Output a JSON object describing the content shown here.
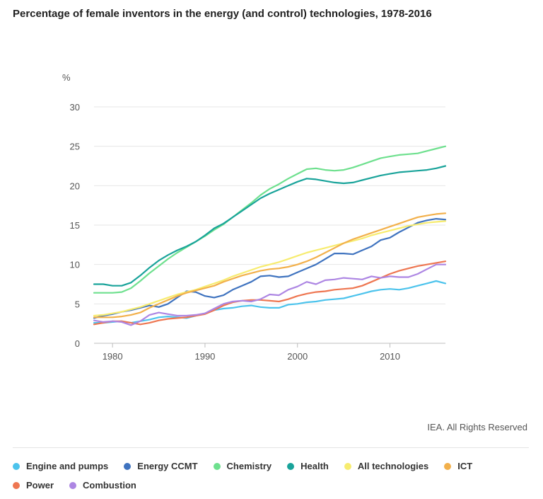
{
  "chart_data": {
    "type": "line",
    "title": "Percentage of female inventors in the energy (and control) technologies, 1978-2016",
    "ylabel": "%",
    "xlabel": "",
    "xlim": [
      1978,
      2016
    ],
    "ylim": [
      0,
      30
    ],
    "yticks": [
      0,
      5,
      10,
      15,
      20,
      25,
      30
    ],
    "xticks": [
      1980,
      1990,
      2000,
      2010
    ],
    "x": [
      1978,
      1979,
      1980,
      1981,
      1982,
      1983,
      1984,
      1985,
      1986,
      1987,
      1988,
      1989,
      1990,
      1991,
      1992,
      1993,
      1994,
      1995,
      1996,
      1997,
      1998,
      1999,
      2000,
      2001,
      2002,
      2003,
      2004,
      2005,
      2006,
      2007,
      2008,
      2009,
      2010,
      2011,
      2012,
      2013,
      2014,
      2015,
      2016
    ],
    "series": [
      {
        "name": "Engine and pumps",
        "color": "#4cc3ec",
        "values": [
          2.6,
          2.6,
          2.7,
          2.8,
          2.6,
          2.8,
          3.0,
          3.3,
          3.4,
          3.3,
          3.2,
          3.5,
          3.8,
          4.2,
          4.4,
          4.5,
          4.7,
          4.8,
          4.6,
          4.5,
          4.5,
          4.9,
          5.0,
          5.2,
          5.3,
          5.5,
          5.6,
          5.7,
          6.0,
          6.3,
          6.6,
          6.8,
          6.9,
          6.8,
          7.0,
          7.3,
          7.6,
          7.9,
          7.6
        ]
      },
      {
        "name": "Energy CCMT",
        "color": "#3f73bf",
        "values": [
          3.2,
          3.5,
          3.7,
          4.0,
          4.2,
          4.5,
          4.8,
          4.6,
          5.0,
          5.8,
          6.6,
          6.5,
          6.0,
          5.8,
          6.1,
          6.8,
          7.3,
          7.8,
          8.5,
          8.6,
          8.4,
          8.5,
          9.0,
          9.5,
          10.0,
          10.7,
          11.4,
          11.4,
          11.3,
          11.8,
          12.3,
          13.1,
          13.4,
          14.1,
          14.7,
          15.3,
          15.6,
          15.8,
          15.7
        ]
      },
      {
        "name": "Chemistry",
        "color": "#6ee08e",
        "values": [
          6.4,
          6.4,
          6.4,
          6.5,
          7.0,
          7.9,
          8.9,
          9.8,
          10.7,
          11.5,
          12.2,
          12.9,
          13.6,
          14.4,
          15.1,
          16.0,
          16.9,
          17.8,
          18.8,
          19.6,
          20.2,
          20.9,
          21.5,
          22.1,
          22.2,
          22.0,
          21.9,
          22.0,
          22.3,
          22.7,
          23.1,
          23.5,
          23.7,
          23.9,
          24.0,
          24.1,
          24.4,
          24.7,
          25.0
        ]
      },
      {
        "name": "Health",
        "color": "#19a39a",
        "values": [
          7.5,
          7.5,
          7.3,
          7.3,
          7.7,
          8.6,
          9.6,
          10.5,
          11.2,
          11.8,
          12.3,
          12.9,
          13.7,
          14.6,
          15.2,
          16.0,
          16.8,
          17.6,
          18.4,
          19.0,
          19.5,
          20.0,
          20.5,
          20.9,
          20.8,
          20.6,
          20.4,
          20.3,
          20.4,
          20.7,
          21.0,
          21.3,
          21.5,
          21.7,
          21.8,
          21.9,
          22.0,
          22.2,
          22.5
        ]
      },
      {
        "name": "All technologies",
        "color": "#f7ec6f",
        "values": [
          3.5,
          3.6,
          3.8,
          4.0,
          4.3,
          4.6,
          5.0,
          5.4,
          5.8,
          6.2,
          6.5,
          6.8,
          7.2,
          7.6,
          8.0,
          8.5,
          8.9,
          9.3,
          9.7,
          10.0,
          10.3,
          10.7,
          11.1,
          11.5,
          11.8,
          12.1,
          12.4,
          12.7,
          13.0,
          13.3,
          13.7,
          14.0,
          14.3,
          14.6,
          14.9,
          15.1,
          15.3,
          15.4,
          15.5
        ]
      },
      {
        "name": "ICT",
        "color": "#f2b04b",
        "values": [
          3.3,
          3.3,
          3.3,
          3.4,
          3.6,
          3.9,
          4.5,
          5.0,
          5.5,
          6.0,
          6.4,
          6.7,
          7.0,
          7.3,
          7.8,
          8.2,
          8.6,
          8.9,
          9.2,
          9.4,
          9.5,
          9.7,
          10.0,
          10.4,
          10.9,
          11.5,
          12.1,
          12.7,
          13.2,
          13.6,
          14.0,
          14.4,
          14.8,
          15.2,
          15.6,
          16.0,
          16.2,
          16.4,
          16.5
        ]
      },
      {
        "name": "Power",
        "color": "#ee7651",
        "values": [
          2.4,
          2.6,
          2.8,
          2.8,
          2.6,
          2.4,
          2.6,
          2.9,
          3.1,
          3.2,
          3.3,
          3.5,
          3.7,
          4.2,
          4.8,
          5.2,
          5.4,
          5.5,
          5.5,
          5.4,
          5.3,
          5.6,
          6.0,
          6.3,
          6.5,
          6.6,
          6.8,
          6.9,
          7.0,
          7.3,
          7.8,
          8.3,
          8.8,
          9.2,
          9.5,
          9.8,
          10.0,
          10.2,
          10.4
        ]
      },
      {
        "name": "Combustion",
        "color": "#ad86e3",
        "values": [
          2.9,
          2.7,
          2.8,
          2.7,
          2.3,
          2.8,
          3.6,
          3.9,
          3.7,
          3.5,
          3.5,
          3.6,
          3.8,
          4.4,
          5.0,
          5.3,
          5.4,
          5.3,
          5.6,
          6.2,
          6.1,
          6.8,
          7.2,
          7.8,
          7.5,
          8.0,
          8.1,
          8.3,
          8.2,
          8.1,
          8.5,
          8.3,
          8.5,
          8.4,
          8.4,
          8.8,
          9.4,
          10.0,
          10.0
        ]
      }
    ]
  },
  "credit": "IEA. All Rights Reserved"
}
